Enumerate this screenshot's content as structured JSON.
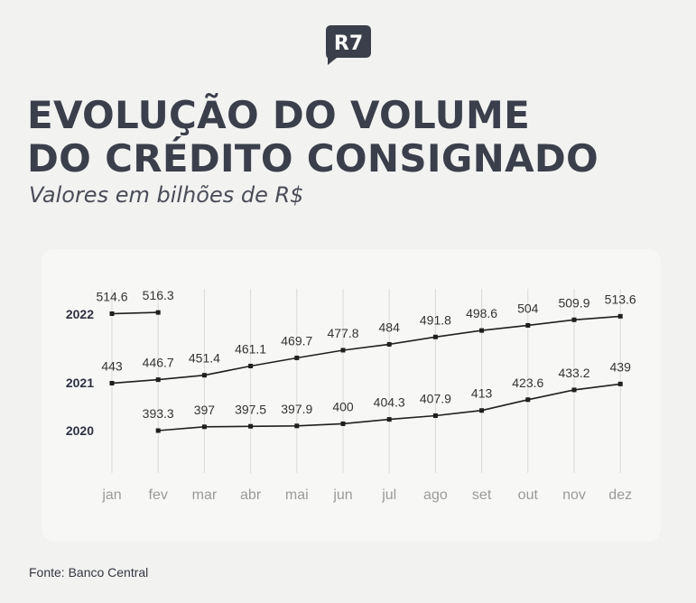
{
  "brand": {
    "logo_text": "R7",
    "logo_color": "#3b3f4b"
  },
  "header": {
    "title_line1": "EVOLUÇÃO DO VOLUME",
    "title_line2": "DO CRÉDITO CONSIGNADO",
    "subtitle": "Valores em bilhões de R$"
  },
  "footer": {
    "source": "Fonte: Banco Central"
  },
  "chart_data": {
    "type": "line",
    "title": "EVOLUÇÃO DO VOLUME DO CRÉDITO CONSIGNADO",
    "subtitle": "Valores em bilhões de R$",
    "categories": [
      "jan",
      "fev",
      "mar",
      "abr",
      "mai",
      "jun",
      "jul",
      "ago",
      "set",
      "out",
      "nov",
      "dez"
    ],
    "series": [
      {
        "name": "2022",
        "values": [
          514.6,
          516.3,
          null,
          null,
          null,
          null,
          null,
          null,
          null,
          null,
          null,
          null
        ]
      },
      {
        "name": "2021",
        "values": [
          443,
          446.7,
          451.4,
          461.1,
          469.7,
          477.8,
          484,
          491.8,
          498.6,
          504,
          509.9,
          513.6
        ]
      },
      {
        "name": "2020",
        "values": [
          null,
          393.3,
          397,
          397.5,
          397.9,
          400,
          404.3,
          407.9,
          413,
          423.6,
          433.2,
          439
        ]
      }
    ],
    "grid": "vertical",
    "legend": "row labels on left",
    "colors": {
      "line": "#1f1f1f",
      "grid": "#d9d9d9",
      "axis_label": "#9a9a9a",
      "value_label": "#333333"
    }
  }
}
